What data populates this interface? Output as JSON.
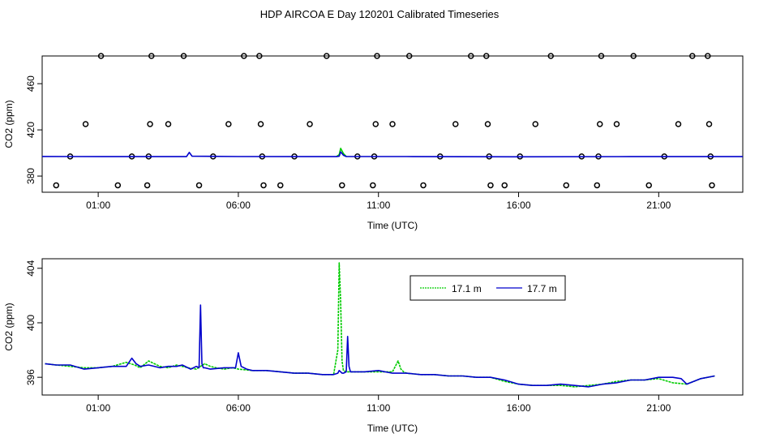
{
  "title": "HDP AIRCOA E  Day 120201  Calibrated Timeseries",
  "chart_data": [
    {
      "type": "scatter+line",
      "xlabel": "Time (UTC)",
      "ylabel": "CO2 (ppm)",
      "xlim": [
        -1.0,
        24.0
      ],
      "ylim": [
        366,
        484
      ],
      "x_ticks": [
        1,
        6,
        11,
        16,
        21
      ],
      "x_tick_labels": [
        "01:00",
        "06:00",
        "11:00",
        "16:00",
        "21:00"
      ],
      "y_ticks": [
        380,
        420,
        460
      ],
      "y_tick_labels": [
        "380",
        "420",
        "460"
      ],
      "scatter_points": [
        [
          -0.5,
          372
        ],
        [
          0.0,
          397
        ],
        [
          0.55,
          425
        ],
        [
          1.1,
          484
        ],
        [
          1.7,
          372
        ],
        [
          2.2,
          397
        ],
        [
          2.75,
          372
        ],
        [
          2.8,
          397
        ],
        [
          2.85,
          425
        ],
        [
          2.9,
          484
        ],
        [
          3.5,
          425
        ],
        [
          4.05,
          484
        ],
        [
          4.6,
          372
        ],
        [
          5.1,
          397
        ],
        [
          5.65,
          425
        ],
        [
          6.2,
          484
        ],
        [
          6.75,
          484
        ],
        [
          6.8,
          425
        ],
        [
          6.85,
          397
        ],
        [
          6.9,
          372
        ],
        [
          7.5,
          372
        ],
        [
          8.0,
          397
        ],
        [
          8.55,
          425
        ],
        [
          9.15,
          484
        ],
        [
          9.7,
          372
        ],
        [
          10.25,
          397
        ],
        [
          10.8,
          372
        ],
        [
          10.85,
          397
        ],
        [
          10.9,
          425
        ],
        [
          10.95,
          484
        ],
        [
          11.5,
          425
        ],
        [
          12.1,
          484
        ],
        [
          12.6,
          372
        ],
        [
          13.2,
          397
        ],
        [
          13.75,
          425
        ],
        [
          14.3,
          484
        ],
        [
          14.85,
          484
        ],
        [
          14.9,
          425
        ],
        [
          14.95,
          397
        ],
        [
          15.0,
          372
        ],
        [
          15.5,
          372
        ],
        [
          16.05,
          397
        ],
        [
          16.6,
          425
        ],
        [
          17.15,
          484
        ],
        [
          17.7,
          372
        ],
        [
          18.25,
          397
        ],
        [
          18.8,
          372
        ],
        [
          18.85,
          397
        ],
        [
          18.9,
          425
        ],
        [
          18.95,
          484
        ],
        [
          19.5,
          425
        ],
        [
          20.1,
          484
        ],
        [
          20.65,
          372
        ],
        [
          21.2,
          397
        ],
        [
          21.7,
          425
        ],
        [
          22.2,
          484
        ],
        [
          22.75,
          484
        ],
        [
          22.8,
          425
        ],
        [
          22.85,
          397
        ],
        [
          22.9,
          372
        ]
      ],
      "line_series": {
        "name": "17.7 m",
        "color": "#0000cc",
        "x": [
          -1.0,
          0.0,
          3.0,
          4.15,
          4.25,
          4.35,
          6.0,
          9.5,
          9.6,
          9.65,
          9.75,
          9.85,
          12.0,
          16.0,
          20.0,
          24.0
        ],
        "y": [
          397,
          396.9,
          396.8,
          396.8,
          400.5,
          397.2,
          396.9,
          396.8,
          397.2,
          401.0,
          398.0,
          396.9,
          396.9,
          396.7,
          396.8,
          396.8
        ]
      },
      "line_series_2": {
        "name": "17.1 m",
        "color": "#00cc00",
        "x": [
          9.5,
          9.6,
          9.65,
          9.75,
          9.85
        ],
        "y": [
          396.9,
          398.5,
          404.0,
          399.5,
          397.0
        ]
      }
    },
    {
      "type": "line",
      "xlabel": "Time (UTC)",
      "ylabel": "CO2 (ppm)",
      "xlim": [
        -1.0,
        24.0
      ],
      "ylim": [
        394.7,
        404.7
      ],
      "x_ticks": [
        1,
        6,
        11,
        16,
        21
      ],
      "x_tick_labels": [
        "01:00",
        "06:00",
        "11:00",
        "16:00",
        "21:00"
      ],
      "y_ticks": [
        396,
        400,
        404
      ],
      "y_tick_labels": [
        "396",
        "400",
        "404"
      ],
      "legend_position": "top-center",
      "series": [
        {
          "name": "17.1 m",
          "color": "#00cc00",
          "x": [
            -0.9,
            -0.5,
            0.0,
            0.5,
            1.0,
            1.5,
            2.0,
            2.3,
            2.5,
            2.8,
            3.2,
            3.5,
            3.8,
            4.0,
            4.2,
            4.5,
            4.8,
            5.0,
            5.2,
            5.5,
            5.8,
            6.0,
            6.5,
            7.0,
            7.5,
            8.0,
            8.5,
            9.0,
            9.4,
            9.55,
            9.6,
            9.65,
            9.7,
            9.75,
            9.85,
            10.0,
            10.5,
            11.0,
            11.5,
            11.7,
            11.8,
            11.9,
            12.0,
            12.5,
            13.0,
            13.5,
            14.0,
            14.5,
            15.0,
            15.5,
            16.0,
            16.5,
            17.0,
            17.5,
            18.0,
            18.5,
            19.0,
            19.5,
            20.0,
            20.5,
            21.0,
            21.5,
            22.0,
            22.5,
            23.0
          ],
          "y": [
            397.0,
            396.9,
            396.8,
            396.7,
            396.7,
            396.8,
            397.1,
            396.9,
            396.7,
            397.2,
            396.8,
            396.7,
            396.9,
            396.8,
            396.7,
            396.6,
            397.0,
            396.8,
            396.7,
            396.6,
            396.7,
            396.6,
            396.5,
            396.5,
            396.4,
            396.3,
            396.3,
            396.2,
            396.2,
            398.0,
            404.4,
            401.5,
            397.2,
            396.5,
            396.4,
            396.4,
            396.4,
            396.4,
            396.4,
            397.2,
            396.6,
            396.4,
            396.3,
            396.2,
            396.2,
            396.1,
            396.1,
            396.0,
            396.0,
            395.7,
            395.5,
            395.4,
            395.4,
            395.4,
            395.3,
            395.4,
            395.5,
            395.7,
            395.8,
            395.8,
            395.9,
            395.6,
            395.5,
            395.9,
            396.1
          ]
        },
        {
          "name": "17.7 m",
          "color": "#0000cc",
          "x": [
            -0.9,
            -0.5,
            0.0,
            0.5,
            1.0,
            1.5,
            2.0,
            2.2,
            2.35,
            2.5,
            2.8,
            3.2,
            3.5,
            3.8,
            4.0,
            4.3,
            4.5,
            4.6,
            4.65,
            4.7,
            4.75,
            4.8,
            5.0,
            5.5,
            5.9,
            6.0,
            6.1,
            6.3,
            6.5,
            7.0,
            7.5,
            8.0,
            8.5,
            9.0,
            9.4,
            9.55,
            9.6,
            9.65,
            9.7,
            9.75,
            9.85,
            9.9,
            9.95,
            10.0,
            10.5,
            11.0,
            11.5,
            12.0,
            12.5,
            13.0,
            13.5,
            14.0,
            14.5,
            15.0,
            15.5,
            16.0,
            16.5,
            17.0,
            17.5,
            18.0,
            18.5,
            19.0,
            19.5,
            20.0,
            20.5,
            21.0,
            21.5,
            21.8,
            22.0,
            22.5,
            23.0
          ],
          "y": [
            397.0,
            396.9,
            396.9,
            396.6,
            396.7,
            396.8,
            396.8,
            397.4,
            397.0,
            396.8,
            396.9,
            396.7,
            396.8,
            396.8,
            396.9,
            396.6,
            396.8,
            396.7,
            401.3,
            397.0,
            396.7,
            396.7,
            396.6,
            396.7,
            396.7,
            397.8,
            396.8,
            396.6,
            396.5,
            396.5,
            396.4,
            396.3,
            396.3,
            396.2,
            396.2,
            396.3,
            396.5,
            396.4,
            396.3,
            396.3,
            396.4,
            399.0,
            396.8,
            396.4,
            396.4,
            396.5,
            396.3,
            396.3,
            396.2,
            396.2,
            396.1,
            396.1,
            396.0,
            396.0,
            395.8,
            395.5,
            395.4,
            395.4,
            395.5,
            395.4,
            395.3,
            395.5,
            395.6,
            395.8,
            395.8,
            396.0,
            396.0,
            395.9,
            395.5,
            395.9,
            396.1
          ]
        }
      ]
    }
  ]
}
